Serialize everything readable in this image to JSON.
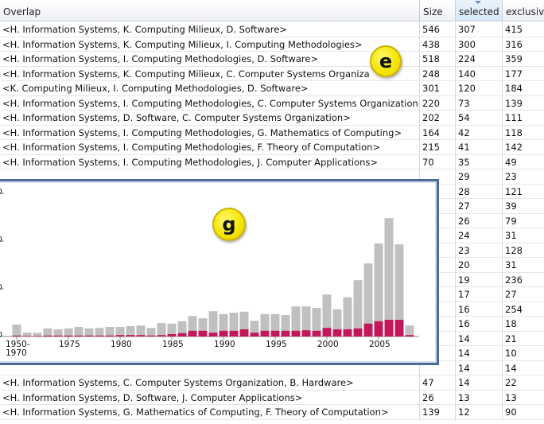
{
  "table": {
    "columns": [
      "Overlap",
      "Size",
      "selected",
      "exclusiv"
    ],
    "rows": [
      [
        "<H. Information Systems, K. Computing Milieux, D. Software>",
        546,
        307,
        415
      ],
      [
        "<H. Information Systems, K. Computing Milieux, I. Computing Methodologies>",
        438,
        300,
        316
      ],
      [
        "<H. Information Systems, I. Computing Methodologies, D. Software>",
        518,
        224,
        359
      ],
      [
        "<H. Information Systems, K. Computing Milieux, C. Computer Systems Organiza",
        248,
        140,
        177
      ],
      [
        "<K. Computing Milieux, I. Computing Methodologies, D. Software>",
        301,
        120,
        184
      ],
      [
        "<H. Information Systems, I. Computing Methodologies, C. Computer Systems Organization>",
        220,
        73,
        139
      ],
      [
        "<H. Information Systems, D. Software, C. Computer Systems Organization>",
        202,
        54,
        111
      ],
      [
        "<H. Information Systems, I. Computing Methodologies, G. Mathematics of Computing>",
        164,
        42,
        118
      ],
      [
        "<H. Information Systems, I. Computing Methodologies, F. Theory of Computation>",
        215,
        41,
        142
      ],
      [
        "<H. Information Systems, I. Computing Methodologies, J. Computer Applications>",
        70,
        35,
        49
      ],
      [
        null,
        null,
        29,
        23
      ],
      [
        null,
        null,
        28,
        121
      ],
      [
        null,
        null,
        27,
        39
      ],
      [
        null,
        null,
        26,
        79
      ],
      [
        null,
        null,
        24,
        31
      ],
      [
        null,
        null,
        23,
        128
      ],
      [
        null,
        null,
        20,
        31
      ],
      [
        null,
        null,
        19,
        236
      ],
      [
        null,
        null,
        17,
        27
      ],
      [
        null,
        null,
        16,
        254
      ],
      [
        null,
        null,
        16,
        18
      ],
      [
        null,
        null,
        14,
        21
      ],
      [
        null,
        null,
        14,
        10
      ],
      [
        null,
        null,
        14,
        14
      ],
      [
        "<H. Information Systems, C. Computer Systems Organization, B. Hardware>",
        47,
        14,
        22
      ],
      [
        "<H. Information Systems, D. Software, J. Computer Applications>",
        26,
        13,
        13
      ],
      [
        "<H. Information Systems, G. Mathematics of Computing, F. Theory of Computation>",
        139,
        12,
        90
      ]
    ]
  },
  "annotations": [
    "e",
    "g"
  ],
  "chart_data": {
    "type": "bar",
    "categories": [
      "1950-1970",
      null,
      null,
      null,
      null,
      1975,
      null,
      null,
      null,
      null,
      1980,
      null,
      null,
      null,
      null,
      1985,
      null,
      null,
      null,
      null,
      1990,
      null,
      null,
      null,
      null,
      1995,
      null,
      null,
      null,
      null,
      2000,
      null,
      null,
      null,
      null,
      2005,
      null,
      null,
      null
    ],
    "series": [
      {
        "color": "#c0c0c0",
        "values": [
          25,
          8,
          8,
          17,
          15,
          17,
          20,
          17,
          18,
          20,
          20,
          22,
          23,
          18,
          28,
          27,
          32,
          43,
          38,
          53,
          47,
          50,
          52,
          33,
          47,
          47,
          45,
          63,
          63,
          60,
          88,
          57,
          82,
          118,
          153,
          195,
          248,
          193,
          23
        ]
      },
      {
        "color": "#c2185b",
        "values": [
          2,
          1,
          1,
          2,
          2,
          2,
          2,
          2,
          2,
          2,
          3,
          3,
          3,
          2,
          3,
          5,
          7,
          12,
          12,
          8,
          12,
          12,
          15,
          8,
          12,
          12,
          12,
          12,
          13,
          12,
          18,
          15,
          15,
          17,
          27,
          32,
          35,
          35,
          3
        ]
      }
    ],
    "ylim": [
      0,
      300
    ],
    "yticks": [
      0,
      100,
      200,
      300
    ]
  }
}
